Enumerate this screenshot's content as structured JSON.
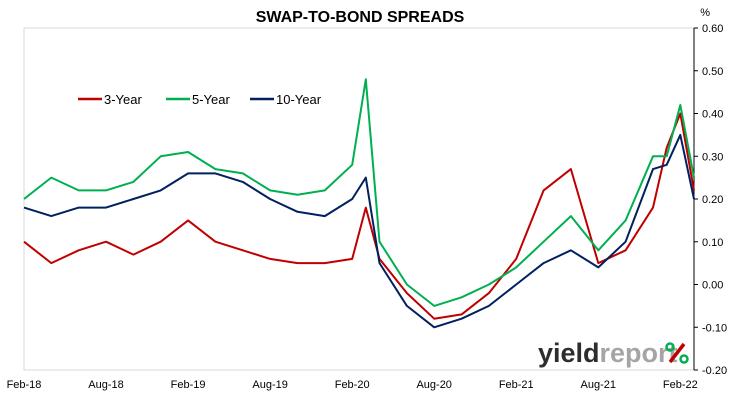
{
  "chart_data": {
    "type": "line",
    "title": "SWAP-TO-BOND SPREADS",
    "y_unit_label": "%",
    "ylim": [
      -0.2,
      0.6
    ],
    "y_ticks": [
      "-0.20",
      "-0.10",
      "0.00",
      "0.10",
      "0.20",
      "0.30",
      "0.40",
      "0.50",
      "0.60"
    ],
    "y_tick_values": [
      -0.2,
      -0.1,
      0.0,
      0.1,
      0.2,
      0.3,
      0.4,
      0.5,
      0.6
    ],
    "y_axis_position": "right",
    "x_ticks": [
      "Feb-18",
      "Aug-18",
      "Feb-19",
      "Aug-19",
      "Feb-20",
      "Aug-20",
      "Feb-21",
      "Aug-21",
      "Feb-22"
    ],
    "x_range": [
      "2018-02",
      "2022-03"
    ],
    "grid": false,
    "legend_placement": "top-left",
    "x": [
      "2018-02",
      "2018-04",
      "2018-06",
      "2018-08",
      "2018-10",
      "2018-12",
      "2019-02",
      "2019-04",
      "2019-06",
      "2019-08",
      "2019-10",
      "2019-12",
      "2020-02",
      "2020-03",
      "2020-04",
      "2020-06",
      "2020-08",
      "2020-10",
      "2020-12",
      "2021-02",
      "2021-04",
      "2021-06",
      "2021-08",
      "2021-10",
      "2021-12",
      "2022-01",
      "2022-02",
      "2022-03"
    ],
    "series": [
      {
        "name": "3-Year",
        "color": "#c00000",
        "values": [
          0.1,
          0.05,
          0.08,
          0.1,
          0.07,
          0.1,
          0.15,
          0.1,
          0.08,
          0.06,
          0.05,
          0.05,
          0.06,
          0.18,
          0.06,
          -0.02,
          -0.08,
          -0.07,
          -0.02,
          0.06,
          0.22,
          0.27,
          0.05,
          0.08,
          0.18,
          0.32,
          0.4,
          0.22
        ]
      },
      {
        "name": "5-Year",
        "color": "#00b050",
        "values": [
          0.2,
          0.25,
          0.22,
          0.22,
          0.24,
          0.3,
          0.31,
          0.27,
          0.26,
          0.22,
          0.21,
          0.22,
          0.28,
          0.48,
          0.1,
          0.0,
          -0.05,
          -0.03,
          0.0,
          0.04,
          0.1,
          0.16,
          0.08,
          0.15,
          0.3,
          0.3,
          0.42,
          0.25
        ]
      },
      {
        "name": "10-Year",
        "color": "#002060",
        "values": [
          0.18,
          0.16,
          0.18,
          0.18,
          0.2,
          0.22,
          0.26,
          0.26,
          0.24,
          0.2,
          0.17,
          0.16,
          0.2,
          0.25,
          0.05,
          -0.05,
          -0.1,
          -0.08,
          -0.05,
          0.0,
          0.05,
          0.08,
          0.04,
          0.1,
          0.27,
          0.28,
          0.35,
          0.2
        ]
      }
    ]
  },
  "watermark": {
    "part1": "yield",
    "part2": "report",
    "symbol": "%",
    "colors": {
      "dark": "#2d2d2d",
      "light": "#a5a5a5",
      "accent_red": "#c00000",
      "accent_green": "#00b050"
    }
  }
}
